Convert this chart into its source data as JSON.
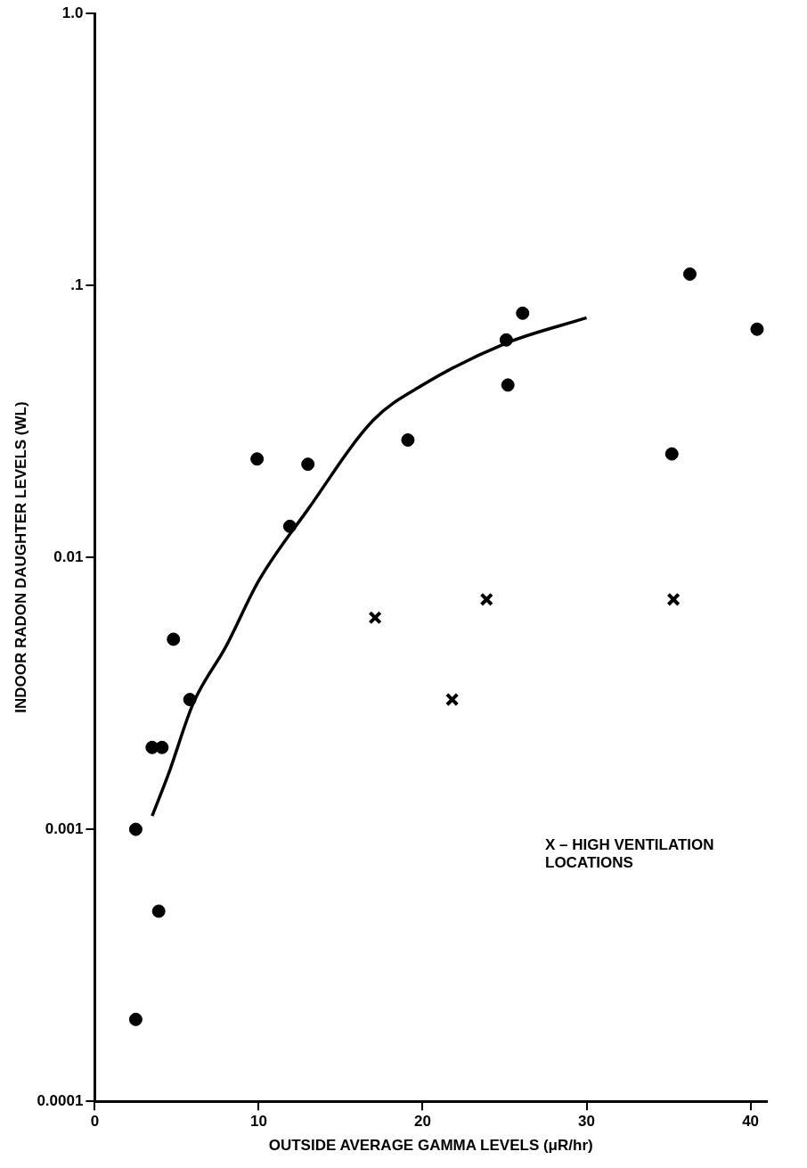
{
  "chart_data": {
    "type": "scatter",
    "xlabel": "OUTSIDE AVERAGE GAMMA LEVELS (μR/hr)",
    "ylabel": "INDOOR RADON DAUGHTER LEVELS (WL)",
    "log": "y",
    "grid": false,
    "legend": false,
    "xlim": [
      0,
      41
    ],
    "xticks": [
      0,
      10,
      20,
      30,
      40
    ],
    "ylim": [
      0.0001,
      1
    ],
    "yticks": [
      {
        "value": 0.0001,
        "label": "0.0001"
      },
      {
        "value": 0.001,
        "label": "0.001"
      },
      {
        "value": 0.01,
        "label": "0.01"
      },
      {
        "value": 0.1,
        "label": ".1"
      },
      {
        "value": 1,
        "label": "1.0"
      }
    ],
    "series": [
      {
        "marker": "circle",
        "color": "#000000",
        "x": [
          2.5,
          2.5,
          3.9,
          3.5,
          4.1,
          4.8,
          5.8,
          9.9,
          11.9,
          13,
          19.1,
          25.1,
          25.2,
          26.1,
          36.3,
          40.4,
          35.2
        ],
        "values": [
          0.001,
          0.0002,
          0.0005,
          0.002,
          0.002,
          0.005,
          0.003,
          0.023,
          0.013,
          0.022,
          0.027,
          0.063,
          0.043,
          0.079,
          0.11,
          0.069,
          0.024
        ]
      },
      {
        "marker": "cross",
        "color": "#000000",
        "x": [
          17.1,
          21.8,
          23.9,
          35.3
        ],
        "values": [
          0.006,
          0.003,
          0.007,
          0.007
        ]
      },
      {
        "type": "line",
        "marker": "none",
        "color": "#000000",
        "x": [
          3.5,
          4.5,
          6,
          8,
          10,
          13,
          17,
          20,
          25,
          30
        ],
        "values": [
          0.00112,
          0.0016,
          0.0029,
          0.0047,
          0.0082,
          0.015,
          0.032,
          0.043,
          0.061,
          0.076
        ]
      }
    ],
    "annotations": [
      "X – HIGH VENTILATION LOCATIONS"
    ]
  }
}
